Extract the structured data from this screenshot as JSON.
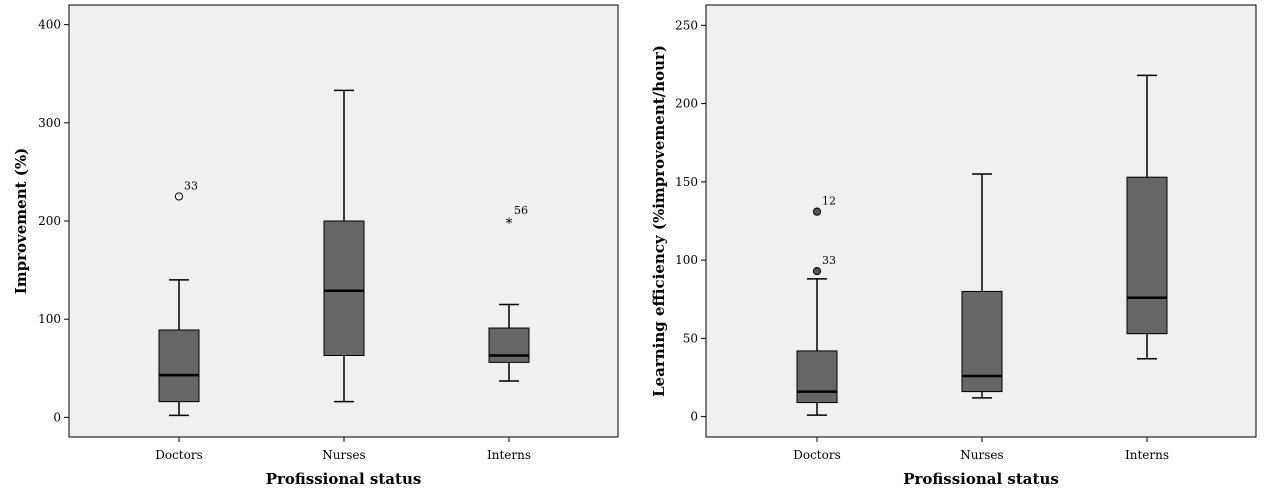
{
  "chart_data": [
    {
      "type": "boxplot",
      "xlabel": "Profissional status",
      "ylabel": "Improvement (%)",
      "ylim": [
        -20,
        420
      ],
      "yticks": [
        0,
        100,
        200,
        300,
        400
      ],
      "categories": [
        "Doctors",
        "Nurses",
        "Interns"
      ],
      "boxes": [
        {
          "category": "Doctors",
          "whisker_low": 2,
          "q1": 16,
          "median": 43,
          "q3": 89,
          "whisker_high": 140,
          "outliers": [
            {
              "value": 225,
              "label": "33",
              "marker": "circle"
            }
          ]
        },
        {
          "category": "Nurses",
          "whisker_low": 16,
          "q1": 63,
          "median": 129,
          "q3": 200,
          "whisker_high": 333,
          "outliers": []
        },
        {
          "category": "Interns",
          "whisker_low": 37,
          "q1": 56,
          "median": 63,
          "q3": 91,
          "whisker_high": 115,
          "outliers": [
            {
              "value": 200,
              "label": "56",
              "marker": "star"
            }
          ]
        }
      ],
      "box_color": "#666666",
      "plot_background": "#f0f0f0",
      "grid": false
    },
    {
      "type": "boxplot",
      "xlabel": "Profissional status",
      "ylabel": "Learning efficiency (%improvement/hour)",
      "ylim": [
        -13,
        263
      ],
      "yticks": [
        0,
        50,
        100,
        150,
        200,
        250
      ],
      "categories": [
        "Doctors",
        "Nurses",
        "Interns"
      ],
      "boxes": [
        {
          "category": "Doctors",
          "whisker_low": 1,
          "q1": 9,
          "median": 16,
          "q3": 42,
          "whisker_high": 88,
          "outliers": [
            {
              "value": 131,
              "label": "12",
              "marker": "circle-filled"
            },
            {
              "value": 93,
              "label": "33",
              "marker": "circle-filled"
            }
          ]
        },
        {
          "category": "Nurses",
          "whisker_low": 12,
          "q1": 16,
          "median": 26,
          "q3": 80,
          "whisker_high": 155,
          "outliers": []
        },
        {
          "category": "Interns",
          "whisker_low": 37,
          "q1": 53,
          "median": 76,
          "q3": 153,
          "whisker_high": 218,
          "outliers": []
        }
      ],
      "box_color": "#666666",
      "plot_background": "#f0f0f0",
      "grid": false
    }
  ]
}
